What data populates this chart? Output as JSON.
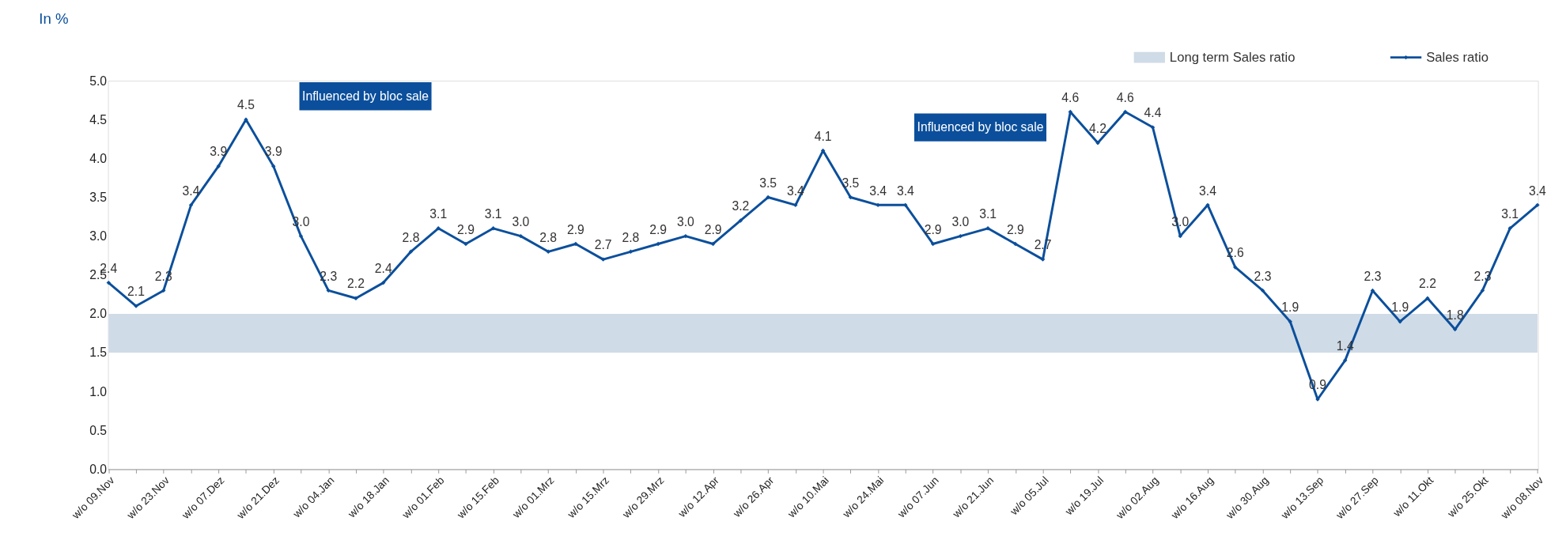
{
  "chart_data": {
    "type": "line",
    "ylabel": "In %",
    "categories": [
      "w/o 09.Nov",
      null,
      "w/o 23.Nov",
      null,
      "w/o 07.Dez",
      null,
      "w/o 21.Dez",
      null,
      "w/o 04.Jan",
      null,
      "w/o 18.Jan",
      null,
      "w/o 01.Feb",
      null,
      "w/o 15.Feb",
      null,
      "w/o 01.Mrz",
      null,
      "w/o 15.Mrz",
      null,
      "w/o 29.Mrz",
      null,
      "w/o 12.Apr",
      null,
      "w/o 26.Apr",
      null,
      "w/o 10.Mai",
      null,
      "w/o 24.Mai",
      null,
      "w/o 07.Jun",
      null,
      "w/o 21.Jun",
      null,
      "w/o 05.Jul",
      null,
      "w/o 19.Jul",
      null,
      "w/o 02.Aug",
      null,
      "w/o 16.Aug",
      null,
      "w/o 30.Aug",
      null,
      "w/o 13.Sep",
      null,
      "w/o 27.Sep",
      null,
      "w/o 11.Okt",
      null,
      "w/o 25.Okt",
      null,
      "w/o 08.Nov"
    ],
    "series": [
      {
        "name": "Sales ratio",
        "color": "#0b4f9c",
        "values": [
          2.4,
          2.1,
          2.3,
          3.4,
          3.9,
          4.5,
          3.9,
          3.0,
          2.3,
          2.2,
          2.4,
          2.8,
          3.1,
          2.9,
          3.1,
          3.0,
          2.8,
          2.9,
          2.7,
          2.8,
          2.9,
          3.0,
          2.9,
          3.2,
          3.5,
          3.4,
          4.1,
          3.5,
          3.4,
          3.4,
          2.9,
          3.0,
          3.1,
          2.9,
          2.7,
          4.6,
          4.2,
          4.6,
          4.4,
          3.0,
          3.4,
          2.6,
          2.3,
          1.9,
          0.9,
          1.4,
          2.3,
          1.9,
          2.2,
          1.8,
          2.3,
          3.1,
          3.4
        ],
        "value_labels": [
          "2.4",
          "2.1",
          "2.3",
          "3.4",
          "3.9",
          "4.5",
          "3.9",
          "3.0",
          "2.3",
          "2.2",
          "2.4",
          "2.8",
          "3.1",
          "2.9",
          "3.1",
          "3.0",
          "2.8",
          "2.9",
          "2.7",
          "2.8",
          "2.9",
          "3.0",
          "2.9",
          "3.2",
          "3.5",
          "3.4",
          "4.1",
          "3.5",
          "3.4",
          "3.4",
          "2.9",
          "3.0",
          "3.1",
          "2.9",
          "2.7",
          "4.6",
          "4.2",
          "4.6",
          "4.4",
          "3.0",
          "3.4",
          "2.6",
          "2.3",
          "1.9",
          "0.9",
          "1.4",
          "2.3",
          "1.9",
          "2.2",
          "1.8",
          "2.3",
          "3.1",
          "3.4"
        ]
      }
    ],
    "bands": [
      {
        "axis": "y",
        "from": 1.5,
        "to": 2.0,
        "label": "Long term Sales ratio",
        "color": "#cfdbe6"
      }
    ],
    "annotations": [
      "Influenced by bloc sale",
      "Influenced by bloc sale"
    ],
    "ylim": [
      0,
      5.0
    ],
    "yticks": [
      {
        "value": 0,
        "label": "0.0"
      },
      0.5,
      {
        "value": 1,
        "label": "1.0"
      },
      1.5,
      {
        "value": 2,
        "label": "2.0"
      },
      2.5,
      {
        "value": 3,
        "label": "3.0"
      },
      3.5,
      {
        "value": 4,
        "label": "4.0"
      },
      4.5,
      {
        "value": 5,
        "label": "5.0"
      }
    ],
    "line_style": "solid",
    "marker": "diamond",
    "legend": "top right",
    "grid": false
  }
}
